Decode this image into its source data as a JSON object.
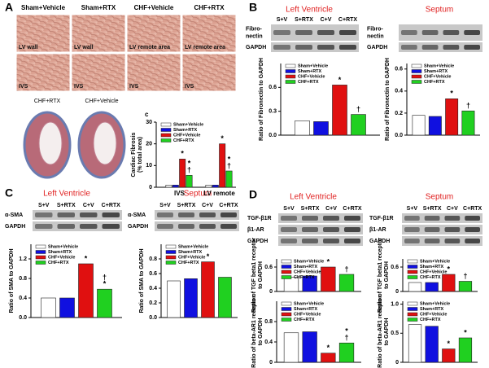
{
  "panel_labels": [
    "A",
    "B",
    "C",
    "D",
    "c"
  ],
  "histology": {
    "columns": [
      "Sham+Vehicle",
      "Sham+RTX",
      "CHF+Vehicle",
      "CHF+RTX"
    ],
    "row1": [
      "LV wall",
      "LV wall",
      "LV  remote area",
      "LV  remote area"
    ],
    "row2": [
      "IVS",
      "IVS",
      "IVS",
      "IVS"
    ],
    "sections": [
      "CHF+RTX",
      "CHF+Vehicle"
    ]
  },
  "blots": [
    {
      "title": "Left Ventricle",
      "lanes": [
        "S+V",
        "S+RTX",
        "C+V",
        "C+RTX"
      ],
      "rows": [
        [
          "Fibro-",
          "nectin"
        ],
        [
          "GAPDH"
        ]
      ]
    },
    {
      "title": "Septum",
      "rows": [
        [
          "Fibro-",
          "nectin"
        ],
        [
          "GAPDH"
        ]
      ]
    },
    {
      "title": "Left Ventricle",
      "lanes": [
        "S+V",
        "S+RTX",
        "C+V",
        "C+RTX"
      ],
      "rows": [
        [
          "α-SMA"
        ],
        [
          "GAPDH"
        ]
      ]
    },
    {
      "title": "Septum",
      "lanes": [
        "S+V",
        "S+RTX",
        "C+V",
        "C+RTX"
      ],
      "rows": [
        [
          "α-SMA"
        ],
        [
          "GAPDH"
        ]
      ]
    },
    {
      "title": "Left Ventricle",
      "lanes": [
        "S+V",
        "S+RTX",
        "C+V",
        "C+RTX"
      ],
      "rows": [
        [
          "TGF-β1R"
        ],
        [
          "β1-AR"
        ],
        [
          "GAPDH"
        ]
      ]
    },
    {
      "title": "Septum",
      "lanes": [
        "S+V",
        "S+RTX",
        "C+V",
        "C+RTX"
      ],
      "rows": [
        [
          "TGF-β1R"
        ],
        [
          "β1-AR"
        ],
        [
          "GAPDH"
        ]
      ]
    }
  ],
  "chart_data": [
    {
      "type": "bar",
      "ylabel": [
        "Cardiac Fibrosis",
        "(% total area)"
      ],
      "categories": [
        "IVS",
        "LV remote"
      ],
      "ylim": [
        0,
        30
      ],
      "yticks": [
        0,
        10,
        20,
        30
      ],
      "series": [
        {
          "name": "Sham+Vehicle",
          "color": "#ffffff",
          "values": [
            1,
            1
          ]
        },
        {
          "name": "Sham+RTX",
          "color": "#1010e0",
          "values": [
            1,
            1
          ]
        },
        {
          "name": "CHF+Vehicle",
          "color": "#e01010",
          "values": [
            13,
            20
          ],
          "annotations": [
            [
              "*"
            ],
            [
              "*"
            ]
          ]
        },
        {
          "name": "CHF+RTX",
          "color": "#20d020",
          "values": [
            5.5,
            7.5
          ],
          "annotations": [
            [
              "*",
              "†"
            ],
            [
              "*",
              "†"
            ]
          ]
        }
      ]
    },
    {
      "type": "bar",
      "ylabel": [
        "Ratio of Fibronectin to GAPDH"
      ],
      "categories": [
        null
      ],
      "ylim": [
        0,
        0.9
      ],
      "yticks": [
        {
          "value": 0,
          "label": "0.0"
        },
        0.3,
        0.6
      ],
      "series": [
        {
          "name": "Sham+Vehicle",
          "color": "#ffffff",
          "values": [
            0.18
          ]
        },
        {
          "name": "Sham+RTX",
          "color": "#1010e0",
          "values": [
            0.17
          ]
        },
        {
          "name": "CHF+Vehicle",
          "color": "#e01010",
          "values": [
            0.63
          ],
          "annotations": [
            [
              "*"
            ]
          ]
        },
        {
          "name": "CHF+RTX",
          "color": "#20d020",
          "values": [
            0.26
          ],
          "annotations": [
            [
              "†"
            ]
          ]
        }
      ]
    },
    {
      "type": "bar",
      "ylabel": [
        "Ratio of Fibronectin to GAPDH"
      ],
      "categories": [
        null
      ],
      "ylim": [
        0,
        0.65
      ],
      "yticks": [
        {
          "value": 0,
          "label": "0.0"
        },
        0.2,
        0.4,
        0.6
      ],
      "series": [
        {
          "name": "Sham+Vehicle",
          "color": "#ffffff",
          "values": [
            0.18
          ]
        },
        {
          "name": "Sham+RTX",
          "color": "#1010e0",
          "values": [
            0.17
          ]
        },
        {
          "name": "CHF+Vehicle",
          "color": "#e01010",
          "values": [
            0.33
          ],
          "annotations": [
            [
              "*"
            ]
          ]
        },
        {
          "name": "CHF+RTX",
          "color": "#20d020",
          "values": [
            0.22
          ],
          "annotations": [
            [
              "†"
            ]
          ]
        }
      ]
    },
    {
      "type": "bar",
      "ylabel": [
        "Ratio of SMA to GAPDH"
      ],
      "categories": [
        null
      ],
      "ylim": [
        0,
        1.5
      ],
      "yticks": [
        {
          "value": 0,
          "label": "0.0"
        },
        0.4,
        0.8,
        1.2
      ],
      "series": [
        {
          "name": "Sham+Vehicle",
          "color": "#ffffff",
          "values": [
            0.4
          ]
        },
        {
          "name": "Sham+RTX",
          "color": "#1010e0",
          "values": [
            0.4
          ]
        },
        {
          "name": "CHF+Vehicle",
          "color": "#e01010",
          "values": [
            1.1
          ],
          "annotations": [
            [
              "*"
            ]
          ]
        },
        {
          "name": "CHF+RTX",
          "color": "#20d020",
          "values": [
            0.58
          ],
          "annotations": [
            [
              "†",
              "*"
            ]
          ]
        }
      ]
    },
    {
      "type": "bar",
      "ylabel": [
        "Ratio of SMA to GAPDH"
      ],
      "categories": [
        null
      ],
      "ylim": [
        0,
        1.0
      ],
      "yticks": [
        {
          "value": 0,
          "label": "0.0"
        },
        0.2,
        0.4,
        0.6,
        0.8
      ],
      "series": [
        {
          "name": "Sham+Vehicle",
          "color": "#ffffff",
          "values": [
            0.5
          ]
        },
        {
          "name": "Sham+RTX",
          "color": "#1010e0",
          "values": [
            0.53
          ]
        },
        {
          "name": "CHF+Vehicle",
          "color": "#e01010",
          "values": [
            0.76
          ],
          "annotations": [
            [
              "*"
            ]
          ]
        },
        {
          "name": "CHF+RTX",
          "color": "#20d020",
          "values": [
            0.55
          ]
        }
      ]
    },
    {
      "type": "bar",
      "ylabel": [
        "Ratio of TGF beta1 receptor",
        "to GAPDH"
      ],
      "categories": [
        null
      ],
      "ylim": [
        0,
        0.8
      ],
      "yticks": [
        0,
        0.6
      ],
      "series": [
        {
          "name": "Sham+Vehicle",
          "color": "#ffffff",
          "values": [
            0.35
          ]
        },
        {
          "name": "Sham+RTX",
          "color": "#1010e0",
          "values": [
            0.38
          ]
        },
        {
          "name": "CHF+Vehicle",
          "color": "#e01010",
          "values": [
            0.6
          ],
          "annotations": [
            [
              "*"
            ]
          ]
        },
        {
          "name": "CHF+RTX",
          "color": "#20d020",
          "values": [
            0.42
          ],
          "annotations": [
            [
              "†"
            ]
          ]
        }
      ]
    },
    {
      "type": "bar",
      "ylabel": [
        "Ratio of TGF beta1 receptor",
        "to GAPDH"
      ],
      "categories": [
        null
      ],
      "ylim": [
        0,
        0.8
      ],
      "yticks": [
        0,
        0.6
      ],
      "series": [
        {
          "name": "Sham+Vehicle",
          "color": "#ffffff",
          "values": [
            0.22
          ]
        },
        {
          "name": "Sham+RTX",
          "color": "#1010e0",
          "values": [
            0.22
          ]
        },
        {
          "name": "CHF+Vehicle",
          "color": "#e01010",
          "values": [
            0.42
          ],
          "annotations": [
            [
              "*"
            ]
          ]
        },
        {
          "name": "CHF+RTX",
          "color": "#20d020",
          "values": [
            0.25
          ],
          "annotations": [
            [
              "†"
            ]
          ]
        }
      ]
    },
    {
      "type": "bar",
      "ylabel": [
        "Ratio of beta-AR1 receptor",
        "to GAPDH"
      ],
      "categories": [
        null
      ],
      "ylim": [
        0,
        1.2
      ],
      "yticks": [
        0,
        0.4,
        0.8
      ],
      "series": [
        {
          "name": "Sham+Vehicle",
          "color": "#ffffff",
          "values": [
            0.58
          ]
        },
        {
          "name": "Sham+RTX",
          "color": "#1010e0",
          "values": [
            0.6
          ]
        },
        {
          "name": "CHF+Vehicle",
          "color": "#e01010",
          "values": [
            0.18
          ],
          "annotations": [
            [
              "*"
            ]
          ]
        },
        {
          "name": "CHF+RTX",
          "color": "#20d020",
          "values": [
            0.38
          ],
          "annotations": [
            [
              "*",
              "†"
            ]
          ]
        }
      ]
    },
    {
      "type": "bar",
      "ylabel": [
        "Ratio of beta-AR1 receptor",
        "to GAPDH"
      ],
      "categories": [
        null
      ],
      "ylim": [
        0,
        1.05
      ],
      "yticks": [
        0,
        0.5,
        {
          "value": 1,
          "label": "1.0"
        }
      ],
      "series": [
        {
          "name": "Sham+Vehicle",
          "color": "#ffffff",
          "values": [
            0.65
          ]
        },
        {
          "name": "Sham+RTX",
          "color": "#1010e0",
          "values": [
            0.62
          ]
        },
        {
          "name": "CHF+Vehicle",
          "color": "#e01010",
          "values": [
            0.23
          ],
          "annotations": [
            [
              "*"
            ]
          ]
        },
        {
          "name": "CHF+RTX",
          "color": "#20d020",
          "values": [
            0.42
          ],
          "annotations": [
            [
              "*"
            ]
          ]
        }
      ]
    }
  ]
}
